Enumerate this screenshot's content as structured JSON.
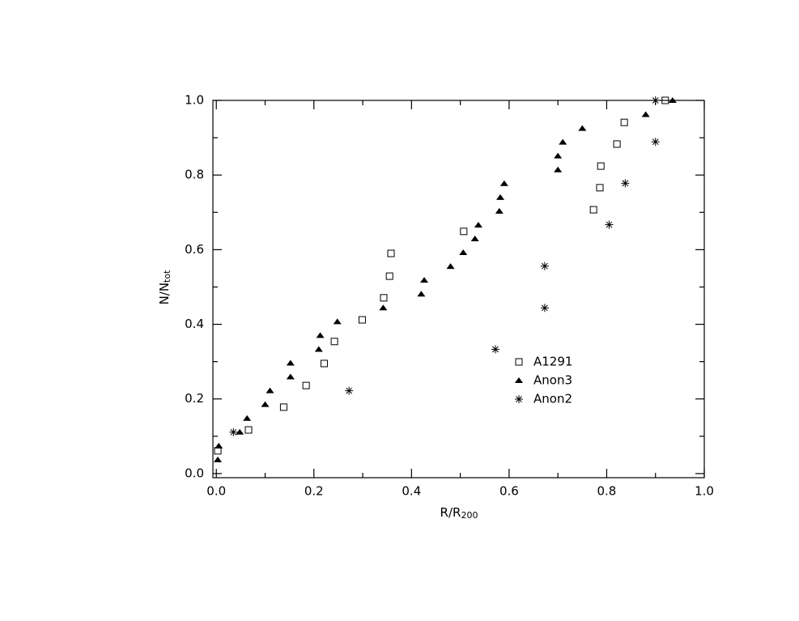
{
  "chart_data": {
    "type": "scatter",
    "x_label": "R/R",
    "x_label_sub": "200",
    "y_label": "N/N",
    "y_label_sub": "tot",
    "xlim": [
      -0.007,
      1.0
    ],
    "ylim": [
      -0.011,
      1.0
    ],
    "xticks": [
      {
        "value": 0,
        "label": "0.0"
      },
      {
        "value": 0.2,
        "label": "0.2"
      },
      {
        "value": 0.4,
        "label": "0.4"
      },
      {
        "value": 0.6,
        "label": "0.6"
      },
      {
        "value": 0.8,
        "label": "0.8"
      },
      {
        "value": 1.0,
        "label": "1.0"
      }
    ],
    "yticks": [
      {
        "value": 0,
        "label": "0.0"
      },
      {
        "value": 0.2,
        "label": "0.2"
      },
      {
        "value": 0.4,
        "label": "0.4"
      },
      {
        "value": 0.6,
        "label": "0.6"
      },
      {
        "value": 0.8,
        "label": "0.8"
      },
      {
        "value": 1.0,
        "label": "1.0"
      }
    ],
    "xminorticks": [
      0.1,
      0.3,
      0.5,
      0.7,
      0.9
    ],
    "yminorticks": [
      0.1,
      0.3,
      0.5,
      0.7,
      0.9
    ],
    "grid": false,
    "legend": "right",
    "series": [
      {
        "name": "A1291",
        "marker": "square",
        "color": "#000",
        "x": [
          0.003,
          0.066,
          0.138,
          0.184,
          0.221,
          0.242,
          0.299,
          0.343,
          0.355,
          0.358,
          0.507,
          0.773,
          0.786,
          0.788,
          0.821,
          0.836,
          0.92
        ],
        "values": [
          0.061,
          0.117,
          0.178,
          0.236,
          0.295,
          0.354,
          0.412,
          0.471,
          0.529,
          0.59,
          0.649,
          0.707,
          0.766,
          0.824,
          0.883,
          0.941,
          1.0
        ]
      },
      {
        "name": "Anon3",
        "marker": "triangle",
        "color": "#000",
        "x": [
          0.003,
          0.005,
          0.048,
          0.063,
          0.1,
          0.11,
          0.152,
          0.152,
          0.21,
          0.213,
          0.248,
          0.342,
          0.42,
          0.426,
          0.48,
          0.506,
          0.53,
          0.537,
          0.58,
          0.582,
          0.59,
          0.7,
          0.7,
          0.71,
          0.75,
          0.88,
          0.935
        ],
        "values": [
          0.037,
          0.074,
          0.111,
          0.148,
          0.185,
          0.222,
          0.259,
          0.296,
          0.333,
          0.37,
          0.407,
          0.444,
          0.481,
          0.518,
          0.555,
          0.592,
          0.629,
          0.666,
          0.703,
          0.74,
          0.777,
          0.814,
          0.851,
          0.888,
          0.925,
          0.962,
          1.0
        ]
      },
      {
        "name": "Anon2",
        "marker": "star",
        "color": "#000",
        "x": [
          0.035,
          0.272,
          0.572,
          0.673,
          0.673,
          0.805,
          0.838,
          0.9,
          0.9
        ],
        "values": [
          0.111,
          0.222,
          0.333,
          0.444,
          0.556,
          0.667,
          0.778,
          0.889,
          1.0
        ]
      }
    ]
  }
}
